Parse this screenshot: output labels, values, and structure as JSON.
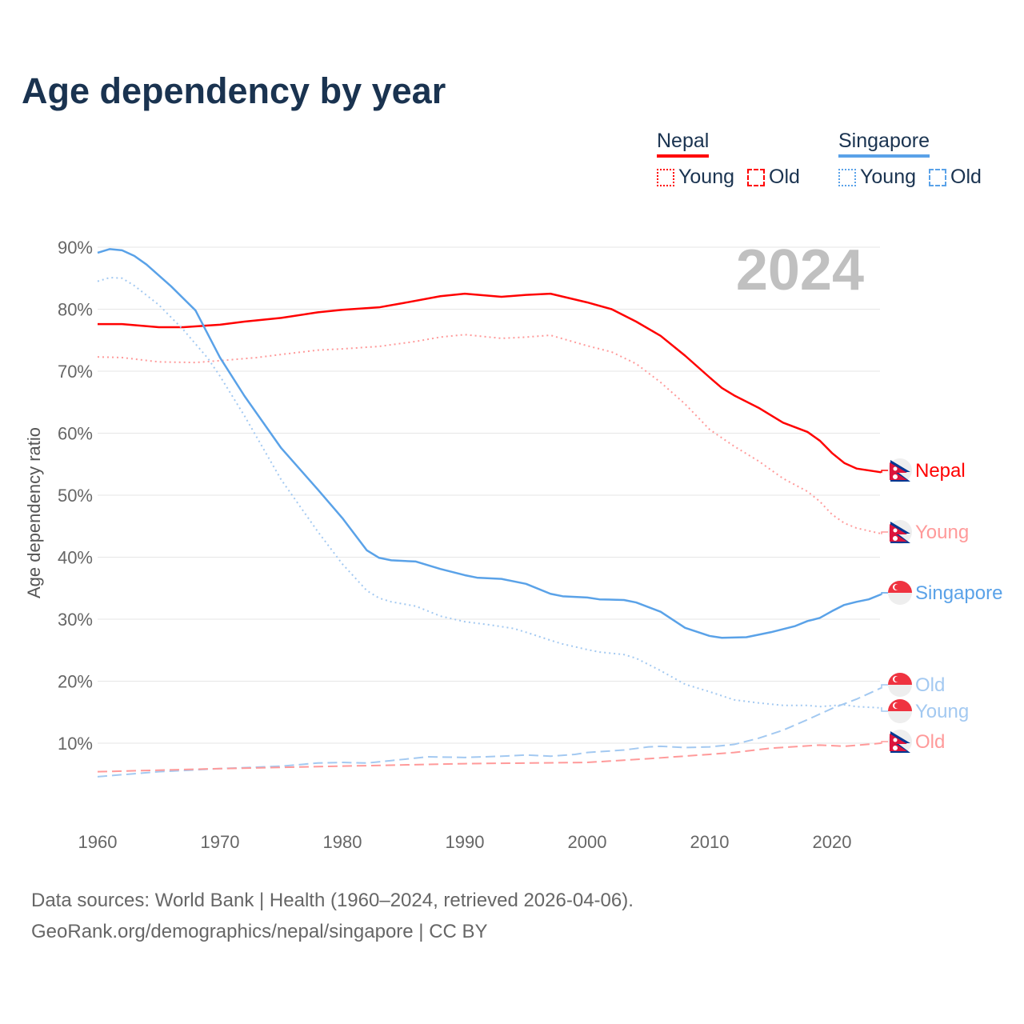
{
  "title": "Age dependency by year",
  "legend": {
    "groups": [
      {
        "name": "Nepal",
        "color": "#ff0000",
        "items": [
          {
            "label": "Young",
            "style": "dotted"
          },
          {
            "label": "Old",
            "style": "dashed"
          }
        ]
      },
      {
        "name": "Singapore",
        "color": "#5aa2e8",
        "items": [
          {
            "label": "Young",
            "style": "dotted"
          },
          {
            "label": "Old",
            "style": "dashed"
          }
        ]
      }
    ]
  },
  "footer": {
    "line1": "Data sources: World Bank | Health (1960–2024, retrieved 2026-04-06).",
    "line2": "GeoRank.org/demographics/nepal/singapore | CC BY"
  },
  "chart_data": {
    "type": "line",
    "title": "Age dependency by year",
    "watermark_year": "2024",
    "xlabel": "",
    "ylabel": "Age dependency ratio",
    "xlim": [
      1960,
      2024
    ],
    "ylim": [
      0,
      90
    ],
    "xticks": [
      1960,
      1970,
      1980,
      1990,
      2000,
      2010,
      2020
    ],
    "yticks": [
      10,
      20,
      30,
      40,
      50,
      60,
      70,
      80,
      90
    ],
    "ytick_labels": [
      "10%",
      "20%",
      "30%",
      "40%",
      "50%",
      "60%",
      "70%",
      "80%",
      "90%"
    ],
    "grid": true,
    "legend_position": "top-right",
    "series": [
      {
        "name": "Nepal",
        "end_label": "Nepal",
        "flag": "nepal",
        "color": "#ff0000",
        "label_color": "#ff0000",
        "style": "solid",
        "x": [
          1960,
          1962,
          1965,
          1967,
          1970,
          1972,
          1975,
          1978,
          1980,
          1983,
          1985,
          1988,
          1990,
          1993,
          1995,
          1997,
          2000,
          2002,
          2004,
          2006,
          2008,
          2010,
          2011,
          2012,
          2014,
          2016,
          2018,
          2019,
          2020,
          2021,
          2022,
          2024
        ],
        "y": [
          77.6,
          77.6,
          77.1,
          77.1,
          77.5,
          78.0,
          78.6,
          79.5,
          79.9,
          80.3,
          81.0,
          82.1,
          82.5,
          82.0,
          82.3,
          82.5,
          81.1,
          80.0,
          78.0,
          75.7,
          72.5,
          69.0,
          67.3,
          66.1,
          64.1,
          61.7,
          60.2,
          58.8,
          56.8,
          55.2,
          54.3,
          53.7
        ]
      },
      {
        "name": "Nepal Young",
        "end_label": "Young",
        "flag": "nepal",
        "color": "#ff9a9a",
        "label_color": "#ff9a9a",
        "style": "dotted",
        "x": [
          1960,
          1962,
          1965,
          1968,
          1970,
          1973,
          1975,
          1978,
          1980,
          1983,
          1986,
          1988,
          1990,
          1993,
          1995,
          1997,
          2000,
          2002,
          2004,
          2006,
          2008,
          2010,
          2012,
          2014,
          2016,
          2018,
          2019,
          2020,
          2021,
          2022,
          2024
        ],
        "y": [
          72.3,
          72.2,
          71.5,
          71.4,
          71.7,
          72.2,
          72.7,
          73.4,
          73.6,
          74.0,
          74.8,
          75.5,
          75.9,
          75.3,
          75.5,
          75.8,
          74.1,
          73.1,
          71.2,
          68.2,
          64.7,
          60.6,
          57.9,
          55.5,
          52.7,
          50.6,
          49.0,
          46.9,
          45.5,
          44.7,
          43.8
        ]
      },
      {
        "name": "Singapore",
        "end_label": "Singapore",
        "flag": "singapore",
        "color": "#5aa2e8",
        "label_color": "#5aa2e8",
        "style": "solid",
        "x": [
          1960,
          1961,
          1962,
          1963,
          1964,
          1966,
          1968,
          1970,
          1972,
          1975,
          1978,
          1980,
          1982,
          1983,
          1984,
          1986,
          1988,
          1990,
          1991,
          1993,
          1995,
          1997,
          1998,
          2000,
          2001,
          2003,
          2004,
          2006,
          2008,
          2010,
          2011,
          2013,
          2015,
          2017,
          2018,
          2019,
          2020,
          2021,
          2022,
          2023,
          2024
        ],
        "y": [
          89.1,
          89.7,
          89.5,
          88.6,
          87.2,
          83.7,
          79.8,
          72.2,
          66.0,
          57.6,
          50.9,
          46.3,
          41.1,
          39.9,
          39.5,
          39.3,
          38.1,
          37.1,
          36.7,
          36.5,
          35.7,
          34.1,
          33.7,
          33.5,
          33.2,
          33.1,
          32.7,
          31.2,
          28.6,
          27.3,
          27.0,
          27.1,
          27.9,
          28.9,
          29.7,
          30.2,
          31.3,
          32.3,
          32.8,
          33.2,
          34.0
        ]
      },
      {
        "name": "Singapore Old",
        "end_label": "Old",
        "flag": "singapore",
        "color": "#a3c9f1",
        "label_color": "#a3c9f1",
        "style": "dashed",
        "x": [
          1960,
          1965,
          1970,
          1975,
          1978,
          1980,
          1982,
          1984,
          1987,
          1990,
          1993,
          1995,
          1997,
          1999,
          2000,
          2003,
          2005,
          2006,
          2008,
          2010,
          2012,
          2014,
          2016,
          2018,
          2020,
          2022,
          2024
        ],
        "y": [
          4.6,
          5.4,
          5.9,
          6.3,
          6.8,
          6.9,
          6.8,
          7.2,
          7.8,
          7.7,
          7.9,
          8.1,
          7.9,
          8.2,
          8.5,
          8.9,
          9.4,
          9.5,
          9.3,
          9.4,
          9.8,
          10.8,
          12.1,
          13.8,
          15.6,
          17.1,
          18.9
        ]
      },
      {
        "name": "Singapore Young",
        "end_label": "Young",
        "flag": "singapore",
        "color": "#a3c9f1",
        "label_color": "#a3c9f1",
        "style": "dotted",
        "x": [
          1960,
          1961,
          1962,
          1963,
          1965,
          1967,
          1969,
          1970,
          1972,
          1975,
          1978,
          1980,
          1982,
          1983,
          1984,
          1986,
          1988,
          1990,
          1992,
          1994,
          1995,
          1997,
          1998,
          2000,
          2001,
          2003,
          2004,
          2006,
          2008,
          2010,
          2012,
          2014,
          2016,
          2018,
          2019,
          2021,
          2022,
          2024
        ],
        "y": [
          84.5,
          85.1,
          85.0,
          83.8,
          80.7,
          76.7,
          72.1,
          69.2,
          62.8,
          52.5,
          44.1,
          38.9,
          34.6,
          33.4,
          32.8,
          32.1,
          30.5,
          29.6,
          29.1,
          28.5,
          27.9,
          26.6,
          26.0,
          25.1,
          24.7,
          24.3,
          23.7,
          21.7,
          19.5,
          18.3,
          17.0,
          16.5,
          16.1,
          16.1,
          15.9,
          16.2,
          15.9,
          15.7
        ]
      },
      {
        "name": "Nepal Old",
        "end_label": "Old",
        "flag": "nepal",
        "color": "#ff9a9a",
        "label_color": "#ff9a9a",
        "style": "dashed",
        "x": [
          1960,
          1970,
          1980,
          1990,
          2000,
          2005,
          2010,
          2012,
          2015,
          2019,
          2021,
          2024
        ],
        "y": [
          5.4,
          5.9,
          6.3,
          6.7,
          6.9,
          7.5,
          8.2,
          8.5,
          9.2,
          9.7,
          9.5,
          10.0
        ]
      }
    ]
  }
}
